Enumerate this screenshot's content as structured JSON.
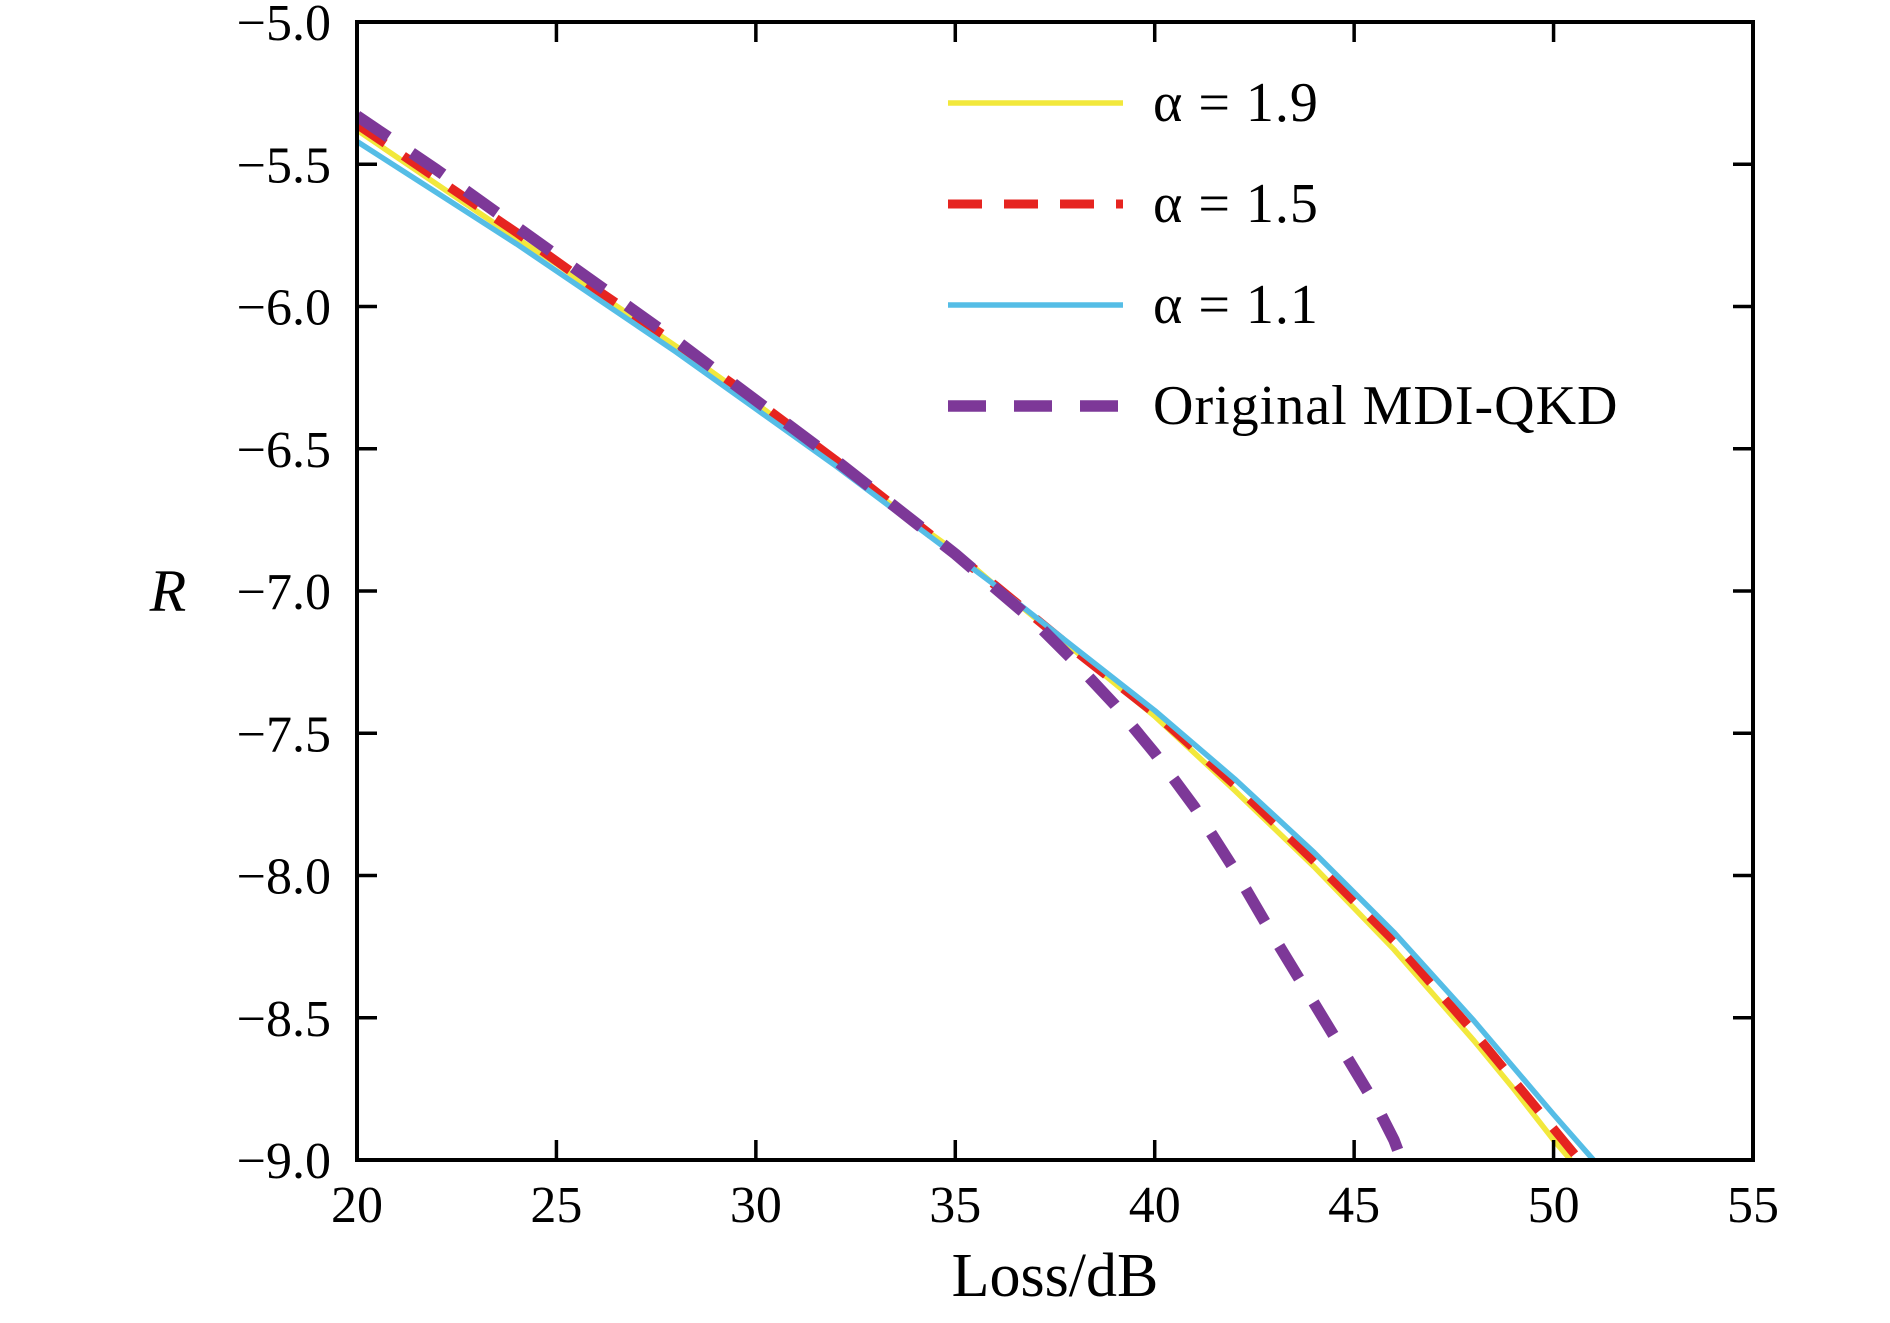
{
  "figure": {
    "background": "#ffffff",
    "axis_color": "#000000"
  },
  "chart_data": {
    "type": "line",
    "title": "",
    "xlabel": "Loss/dB",
    "ylabel": "R",
    "xlim": [
      20,
      55
    ],
    "ylim": [
      -9.0,
      -5.0
    ],
    "xticks": [
      20,
      25,
      30,
      35,
      40,
      45,
      50,
      55
    ],
    "xtick_labels": [
      "20",
      "25",
      "30",
      "35",
      "40",
      "45",
      "50",
      "55"
    ],
    "yticks": [
      -9.0,
      -8.5,
      -8.0,
      -7.5,
      -7.0,
      -6.5,
      -6.0,
      -5.5,
      -5.0
    ],
    "ytick_labels": [
      "−9.0",
      "−8.5",
      "−8.0",
      "−7.5",
      "−7.0",
      "−6.5",
      "−6.0",
      "−5.5",
      "−5.0"
    ],
    "grid": false,
    "legend_position": "upper center, no frame",
    "series": [
      {
        "name": "alpha-1.9",
        "label": "α = 1.9",
        "color": "#f2e83c",
        "style": "solid",
        "width": 5.5,
        "dash": "",
        "points": [
          [
            20,
            -5.38
          ],
          [
            22,
            -5.57
          ],
          [
            24,
            -5.76
          ],
          [
            25,
            -5.85
          ],
          [
            26,
            -5.95
          ],
          [
            28,
            -6.14
          ],
          [
            30,
            -6.34
          ],
          [
            32,
            -6.55
          ],
          [
            34,
            -6.76
          ],
          [
            35,
            -6.86
          ],
          [
            36,
            -6.98
          ],
          [
            38,
            -7.21
          ],
          [
            40,
            -7.44
          ],
          [
            42,
            -7.7
          ],
          [
            44,
            -7.97
          ],
          [
            46,
            -8.26
          ],
          [
            48,
            -8.58
          ],
          [
            49,
            -8.75
          ],
          [
            50,
            -8.93
          ],
          [
            50.8,
            -9.06
          ]
        ]
      },
      {
        "name": "alpha-1.5",
        "label": "α = 1.5",
        "color": "#e62420",
        "style": "dashed",
        "width": 9,
        "dash": "34 22",
        "points": [
          [
            20,
            -5.36
          ],
          [
            22,
            -5.55
          ],
          [
            24,
            -5.74
          ],
          [
            26,
            -5.94
          ],
          [
            28,
            -6.13
          ],
          [
            30,
            -6.33
          ],
          [
            32,
            -6.54
          ],
          [
            34,
            -6.76
          ],
          [
            36,
            -6.98
          ],
          [
            38,
            -7.21
          ],
          [
            40,
            -7.43
          ],
          [
            42,
            -7.68
          ],
          [
            44,
            -7.95
          ],
          [
            46,
            -8.23
          ],
          [
            48,
            -8.55
          ],
          [
            50,
            -8.89
          ],
          [
            51,
            -9.06
          ]
        ]
      },
      {
        "name": "alpha-1.1",
        "label": "α = 1.1",
        "color": "#55bde6",
        "style": "solid",
        "width": 5.5,
        "dash": "",
        "points": [
          [
            20,
            -5.42
          ],
          [
            22,
            -5.6
          ],
          [
            24,
            -5.78
          ],
          [
            26,
            -5.97
          ],
          [
            28,
            -6.16
          ],
          [
            30,
            -6.36
          ],
          [
            32,
            -6.56
          ],
          [
            34,
            -6.77
          ],
          [
            36,
            -6.98
          ],
          [
            38,
            -7.2
          ],
          [
            40,
            -7.42
          ],
          [
            42,
            -7.66
          ],
          [
            44,
            -7.92
          ],
          [
            46,
            -8.2
          ],
          [
            48,
            -8.51
          ],
          [
            50,
            -8.84
          ],
          [
            51,
            -9.0
          ],
          [
            51.4,
            -9.08
          ]
        ]
      },
      {
        "name": "original-mdi-qkd",
        "label": "Original MDI-QKD",
        "color": "#7d3898",
        "style": "dashed",
        "width": 11.5,
        "dash": "38 28",
        "points": [
          [
            20,
            -5.33
          ],
          [
            22,
            -5.52
          ],
          [
            24,
            -5.72
          ],
          [
            26,
            -5.92
          ],
          [
            28,
            -6.12
          ],
          [
            30,
            -6.33
          ],
          [
            32,
            -6.54
          ],
          [
            34,
            -6.76
          ],
          [
            35,
            -6.87
          ],
          [
            36,
            -6.99
          ],
          [
            37,
            -7.11
          ],
          [
            38,
            -7.25
          ],
          [
            39,
            -7.4
          ],
          [
            40,
            -7.57
          ],
          [
            41,
            -7.76
          ],
          [
            42,
            -7.98
          ],
          [
            43,
            -8.22
          ],
          [
            44,
            -8.45
          ],
          [
            45,
            -8.68
          ],
          [
            45.6,
            -8.82
          ],
          [
            46,
            -8.93
          ],
          [
            46.4,
            -9.08
          ]
        ]
      }
    ]
  }
}
